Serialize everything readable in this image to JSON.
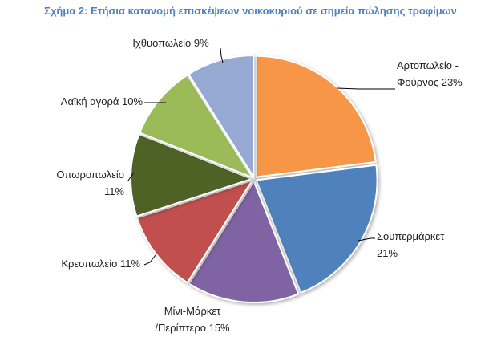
{
  "chart_data": {
    "type": "pie",
    "title": "Σχήμα 2: Ετήσια κατανομή επισκέψεων νοικοκυριού σε σημεία πώλησης τροφίμων",
    "start": "12 o'clock",
    "direction": "clockwise",
    "slices": [
      {
        "label": [
          "Αρτοπωλείο -",
          "Φούρνος 23%"
        ],
        "value": 23,
        "color": "#F79646"
      },
      {
        "label": [
          "Σουπερμάρκετ",
          "21%"
        ],
        "value": 21,
        "color": "#4F81BD"
      },
      {
        "label": [
          "Μίνι-Μάρκετ",
          "/Περίπτερο 15%"
        ],
        "value": 15,
        "color": "#8064A2"
      },
      {
        "label": [
          "Κρεοπωλείο 11%"
        ],
        "value": 11,
        "color": "#C0504D"
      },
      {
        "label": [
          "Οπωροπωλείο",
          "11%"
        ],
        "value": 11,
        "color": "#4F6228"
      },
      {
        "label": [
          "Λαϊκή αγορά 10%"
        ],
        "value": 10,
        "color": "#9BBB59"
      },
      {
        "label": [
          "Ιχθυοπωλείο 9%"
        ],
        "value": 9,
        "color": "#95A9D2"
      }
    ]
  }
}
